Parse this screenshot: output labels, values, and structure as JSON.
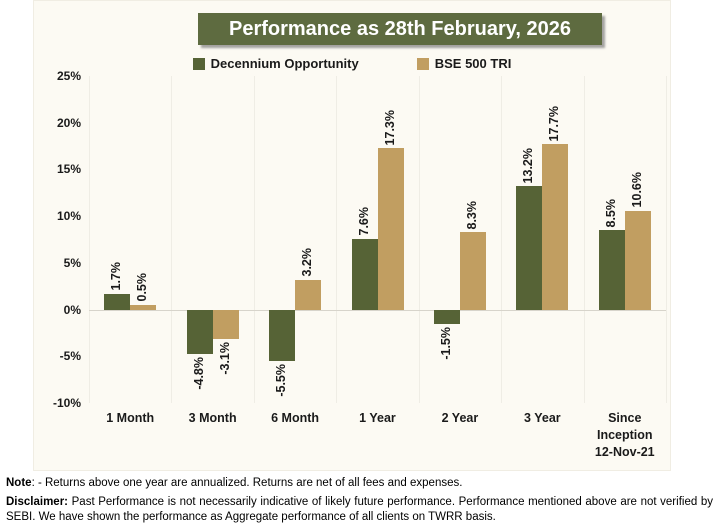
{
  "chart_data": {
    "type": "bar",
    "title": "Performance as 28th February, 2026",
    "categories": [
      "1 Month",
      "3 Month",
      "6 Month",
      "1 Year",
      "2 Year",
      "3 Year",
      "Since\nInception\n12-Nov-21"
    ],
    "series": [
      {
        "name": "Decennium Opportunity",
        "color": "#566336",
        "values": [
          1.7,
          -4.8,
          -5.5,
          7.6,
          -1.5,
          13.2,
          8.5
        ],
        "labels": [
          "1.7%",
          "-4.8%",
          "-5.5%",
          "7.6%",
          "-1.5%",
          "13.2%",
          "8.5%"
        ]
      },
      {
        "name": "BSE 500 TRI",
        "color": "#c19e61",
        "values": [
          0.5,
          -3.1,
          3.2,
          17.3,
          8.3,
          17.7,
          10.6
        ],
        "labels": [
          "0.5%",
          "-3.1%",
          "3.2%",
          "17.3%",
          "8.3%",
          "17.7%",
          "10.6%"
        ]
      }
    ],
    "ylim": [
      -10,
      25
    ],
    "yticks": [
      25,
      20,
      15,
      10,
      5,
      0,
      -5,
      -10
    ],
    "ytick_labels": [
      "25%",
      "20%",
      "15%",
      "10%",
      "5%",
      "0%",
      "-5%",
      "-10%"
    ],
    "grid": "vertical category separators only, light zero axis line",
    "legend_position": "top",
    "bar_label_orientation": "rotated-90-reading-bottom-to-top"
  },
  "colors": {
    "card_background": "#fcfaf3",
    "title_background": "#5e6b40",
    "series_green": "#566336",
    "series_tan": "#c19e61",
    "gridline": "#efede5",
    "zero_line": "#d7d4cb"
  },
  "notes": {
    "note_label": "Note",
    "note_text": ": - Returns above one year are annualized. Returns are net of all fees and expenses.",
    "disclaimer_label": "Disclaimer:",
    "disclaimer_text": " Past Performance is not necessarily indicative of likely future performance. Performance mentioned above are not verified by SEBI. We have shown the performance as Aggregate performance of all clients on TWRR basis."
  }
}
